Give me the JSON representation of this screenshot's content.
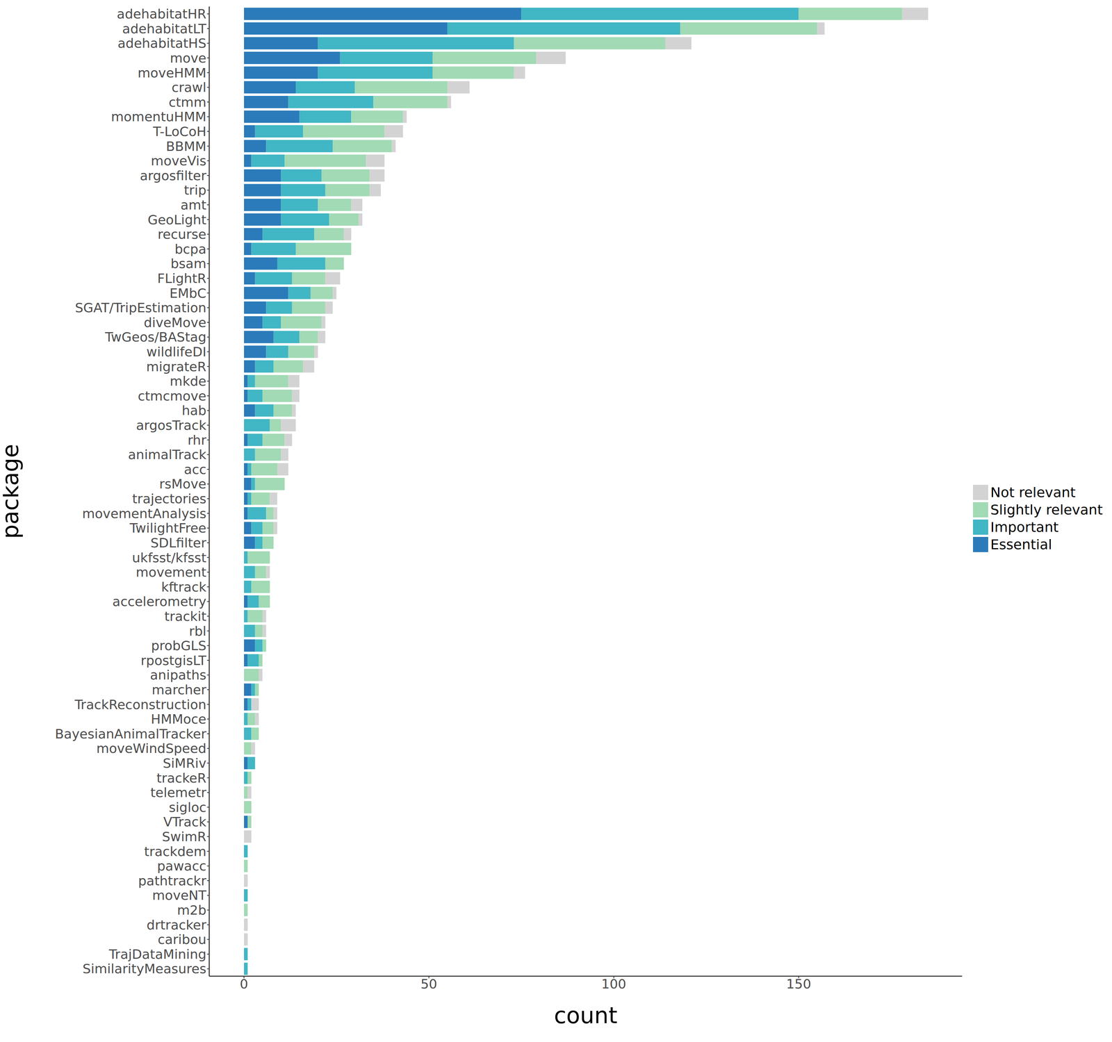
{
  "chart_data": {
    "type": "bar",
    "orientation": "horizontal",
    "stacked": true,
    "legend": "right",
    "grid": false,
    "x_label": "count",
    "y_label": "package",
    "xlim": [
      -9.4,
      194.2
    ],
    "xticks": [
      0,
      50,
      100,
      150
    ],
    "categories": [
      "adehabitatHR",
      "adehabitatLT",
      "adehabitatHS",
      "move",
      "moveHMM",
      "crawl",
      "ctmm",
      "momentuHMM",
      "T-LoCoH",
      "BBMM",
      "moveVis",
      "argosfilter",
      "trip",
      "amt",
      "GeoLight",
      "recurse",
      "bcpa",
      "bsam",
      "FLightR",
      "EMbC",
      "SGAT/TripEstimation",
      "diveMove",
      "TwGeos/BAStag",
      "wildlifeDI",
      "migrateR",
      "mkde",
      "ctmcmove",
      "hab",
      "argosTrack",
      "rhr",
      "animalTrack",
      "acc",
      "rsMove",
      "trajectories",
      "movementAnalysis",
      "TwilightFree",
      "SDLfilter",
      "ukfsst/kfsst",
      "movement",
      "kftrack",
      "accelerometry",
      "trackit",
      "rbl",
      "probGLS",
      "rpostgisLT",
      "anipaths",
      "marcher",
      "TrackReconstruction",
      "HMMoce",
      "BayesianAnimalTracker",
      "moveWindSpeed",
      "SiMRiv",
      "trackeR",
      "telemetr",
      "sigloc",
      "VTrack",
      "SwimR",
      "trackdem",
      "pawacc",
      "pathtrackr",
      "moveNT",
      "m2b",
      "drtracker",
      "caribou",
      "TrajDataMining",
      "SimilarityMeasures"
    ],
    "series": [
      {
        "name": "Essential",
        "color": "#2b7bba",
        "values": [
          75,
          55,
          20,
          26,
          20,
          14,
          12,
          15,
          3,
          6,
          2,
          10,
          10,
          10,
          10,
          5,
          2,
          9,
          3,
          12,
          6,
          5,
          8,
          6,
          3,
          1,
          1,
          3,
          0,
          1,
          0,
          1,
          2,
          1,
          1,
          2,
          3,
          0,
          0,
          0,
          1,
          0,
          0,
          3,
          1,
          0,
          2,
          1,
          0,
          0,
          0,
          1,
          0,
          0,
          0,
          1,
          0,
          0,
          0,
          0,
          0,
          0,
          0,
          0,
          0,
          0
        ]
      },
      {
        "name": "Important",
        "color": "#41b6c4",
        "values": [
          75,
          63,
          53,
          25,
          31,
          16,
          23,
          14,
          13,
          18,
          9,
          11,
          12,
          10,
          13,
          14,
          12,
          13,
          10,
          6,
          7,
          5,
          7,
          6,
          5,
          2,
          4,
          5,
          7,
          4,
          3,
          1,
          1,
          1,
          5,
          3,
          2,
          1,
          3,
          2,
          3,
          1,
          3,
          2,
          3,
          0,
          1,
          1,
          1,
          2,
          0,
          2,
          1,
          0,
          0,
          0,
          0,
          1,
          0,
          0,
          1,
          0,
          0,
          0,
          1,
          1
        ]
      },
      {
        "name": "Slightly relevant",
        "color": "#a1dab4",
        "values": [
          28,
          37,
          41,
          28,
          22,
          25,
          20,
          14,
          22,
          16,
          22,
          13,
          12,
          9,
          8,
          8,
          15,
          5,
          9,
          6,
          9,
          11,
          5,
          7,
          8,
          9,
          8,
          5,
          3,
          6,
          7,
          7,
          8,
          5,
          2,
          3,
          3,
          6,
          3,
          5,
          3,
          4,
          2,
          1,
          1,
          4,
          1,
          0,
          2,
          2,
          2,
          0,
          1,
          1,
          2,
          1,
          0,
          0,
          1,
          0,
          0,
          1,
          0,
          0,
          0,
          0
        ]
      },
      {
        "name": "Not relevant",
        "color": "#d3d3d3",
        "values": [
          7,
          2,
          7,
          8,
          3,
          6,
          1,
          1,
          5,
          1,
          5,
          4,
          3,
          3,
          1,
          2,
          0,
          0,
          4,
          1,
          2,
          1,
          2,
          1,
          3,
          3,
          2,
          1,
          4,
          2,
          2,
          3,
          0,
          2,
          1,
          1,
          0,
          0,
          1,
          0,
          0,
          1,
          1,
          0,
          0,
          1,
          0,
          2,
          1,
          0,
          1,
          0,
          0,
          1,
          0,
          0,
          2,
          0,
          0,
          1,
          0,
          0,
          1,
          1,
          0,
          0
        ]
      }
    ]
  }
}
